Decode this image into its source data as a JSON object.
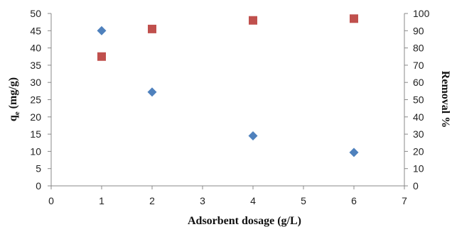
{
  "chart_data": {
    "type": "scatter",
    "xlabel": "Adsorbent dosage (g/L)",
    "ylabel_left": "q",
    "ylabel_left_sub": "e",
    "ylabel_left_rest": " (mg/g)",
    "ylabel_right": "Removal %",
    "xlim": [
      0,
      7
    ],
    "ylim_left": [
      0,
      50
    ],
    "ylim_right": [
      0,
      100
    ],
    "x_ticks": [
      0,
      1,
      2,
      3,
      4,
      5,
      6,
      7
    ],
    "y_left_ticks": [
      0,
      5,
      10,
      15,
      20,
      25,
      30,
      35,
      40,
      45,
      50
    ],
    "y_right_ticks": [
      0,
      10,
      20,
      30,
      40,
      50,
      60,
      70,
      80,
      90,
      100
    ],
    "grid": false,
    "legend": "none",
    "series": [
      {
        "axis": "left",
        "marker": "diamond",
        "color": "#4f81bd",
        "points": [
          {
            "x": 1,
            "y": 45.0
          },
          {
            "x": 2,
            "y": 27.2
          },
          {
            "x": 4,
            "y": 14.5
          },
          {
            "x": 6,
            "y": 9.7
          }
        ]
      },
      {
        "axis": "right",
        "marker": "square",
        "color": "#c0504d",
        "points": [
          {
            "x": 1,
            "y": 75.0
          },
          {
            "x": 2,
            "y": 91.0
          },
          {
            "x": 4,
            "y": 96.0
          },
          {
            "x": 6,
            "y": 97.0
          }
        ]
      }
    ]
  }
}
